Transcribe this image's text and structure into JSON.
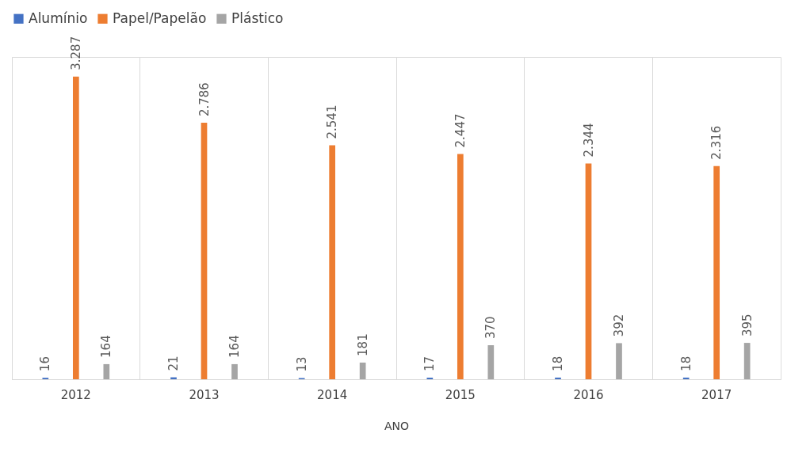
{
  "chart_data": {
    "type": "bar",
    "xlabel": "ANO",
    "categories": [
      "2012",
      "2013",
      "2014",
      "2015",
      "2016",
      "2017"
    ],
    "series": [
      {
        "name": "Alumínio",
        "color": "#4472c4",
        "values": [
          16,
          21,
          13,
          17,
          18,
          18
        ],
        "value_labels": [
          "16",
          "21",
          "13",
          "17",
          "18",
          "18"
        ]
      },
      {
        "name": "Papel/Papelão",
        "color": "#ed7d31",
        "values": [
          3287,
          2786,
          2541,
          2447,
          2344,
          2316
        ],
        "value_labels": [
          "3.287",
          "2.786",
          "2.541",
          "2.447",
          "2.344",
          "2.316"
        ]
      },
      {
        "name": "Plástico",
        "color": "#a5a5a5",
        "values": [
          164,
          164,
          181,
          370,
          392,
          395
        ],
        "value_labels": [
          "164",
          "164",
          "181",
          "370",
          "392",
          "395"
        ]
      }
    ],
    "legend": "top",
    "grid": "x"
  }
}
